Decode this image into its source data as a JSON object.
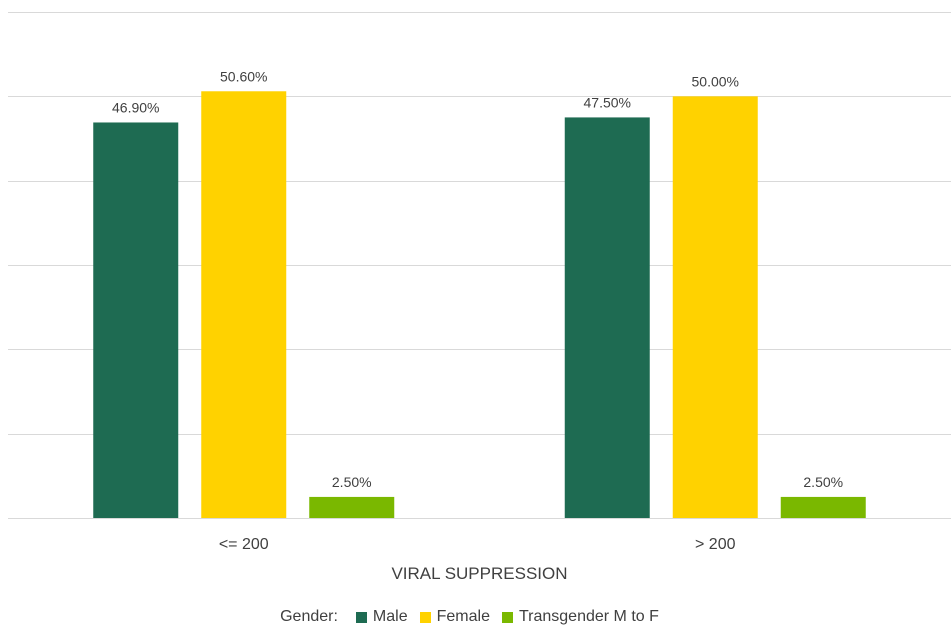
{
  "chart_data": {
    "type": "bar",
    "categories": [
      "<= 200",
      "> 200"
    ],
    "series": [
      {
        "name": "Male",
        "values": [
          46.9,
          47.5
        ],
        "labels": [
          "46.90%",
          "47.50%"
        ],
        "color": "#1e6b52"
      },
      {
        "name": "Female",
        "values": [
          50.6,
          50.0
        ],
        "labels": [
          "50.60%",
          "50.00%"
        ],
        "color": "#ffd200"
      },
      {
        "name": "Transgender M to F",
        "values": [
          2.5,
          2.5
        ],
        "labels": [
          "2.50%",
          "2.50%"
        ],
        "color": "#7ab800"
      }
    ],
    "xlabel": "VIRAL SUPPRESSION",
    "ylabel": "",
    "ylim": [
      0,
      60
    ],
    "grid": true,
    "legend_title": "Gender:",
    "legend_position": "bottom"
  }
}
